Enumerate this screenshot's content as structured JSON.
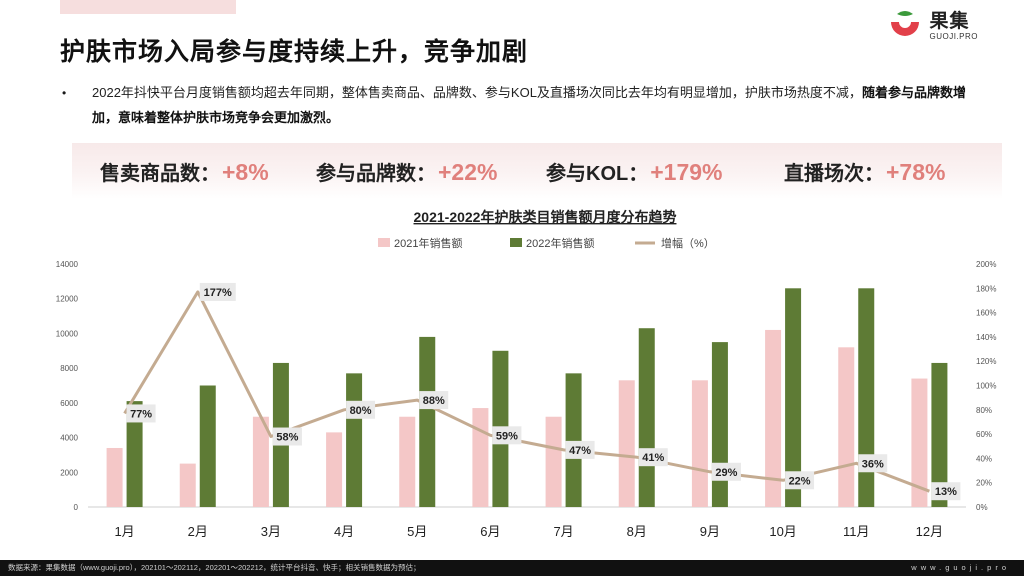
{
  "brand": {
    "logo_cn": "果集",
    "logo_en": "GUOJI.PRO",
    "colors": {
      "red": "#e2404a",
      "green": "#3b9a3b"
    }
  },
  "title": "护肤市场入局参与度持续上升，竞争加剧",
  "bullet": {
    "normal": "2022年抖快平台月度销售额均超去年同期，整体售卖商品、品牌数、参与KOL及直播场次同比去年均有明显增加，护肤市场热度不减，",
    "bold": "随着参与品牌数增加，意味着整体护肤市场竞争会更加激烈。"
  },
  "kpis": [
    {
      "label": "售卖商品数：",
      "value": "+8%"
    },
    {
      "label": "参与品牌数：",
      "value": "+22%"
    },
    {
      "label": "参与KOL：",
      "value": "+179%"
    },
    {
      "label": "直播场次：",
      "value": "+78%"
    }
  ],
  "chart_data": {
    "type": "bar",
    "title": "2021-2022年护肤类目销售额月度分布趋势",
    "categories": [
      "1月",
      "2月",
      "3月",
      "4月",
      "5月",
      "6月",
      "7月",
      "8月",
      "9月",
      "10月",
      "11月",
      "12月"
    ],
    "series": [
      {
        "name": "2021年销售额",
        "type": "bar",
        "axis": "left",
        "color": "#f4c7c7",
        "values": [
          3400,
          2500,
          5200,
          4300,
          5200,
          5700,
          5200,
          7300,
          7300,
          10200,
          9200,
          7400
        ]
      },
      {
        "name": "2022年销售额",
        "type": "bar",
        "axis": "left",
        "color": "#5e7b35",
        "values": [
          6100,
          7000,
          8300,
          7700,
          9800,
          9000,
          7700,
          10300,
          9500,
          12600,
          12600,
          8300
        ]
      },
      {
        "name": "增幅（%）",
        "type": "line",
        "axis": "right",
        "color": "#c4ab91",
        "values": [
          77,
          177,
          58,
          80,
          88,
          59,
          47,
          41,
          29,
          22,
          36,
          13
        ],
        "labels": [
          "77%",
          "177%",
          "58%",
          "80%",
          "88%",
          "59%",
          "47%",
          "41%",
          "29%",
          "22%",
          "36%",
          "13%"
        ]
      }
    ],
    "ylim": [
      0,
      14000
    ],
    "yticks": [
      "0",
      "2000",
      "4000",
      "6000",
      "8000",
      "10000",
      "12000",
      "14000"
    ],
    "y2lim": [
      0,
      200
    ],
    "y2ticks": [
      "0%",
      "20%",
      "40%",
      "60%",
      "80%",
      "100%",
      "120%",
      "140%",
      "160%",
      "180%",
      "200%"
    ],
    "grid": false,
    "legend_position": "top"
  },
  "footer": {
    "left": "数据来源：果集数据（www.guoji.pro），202101～202112，202201～202212，统计平台抖音、快手；相关销售数据为预估；",
    "right": "www.guoji.pro"
  }
}
